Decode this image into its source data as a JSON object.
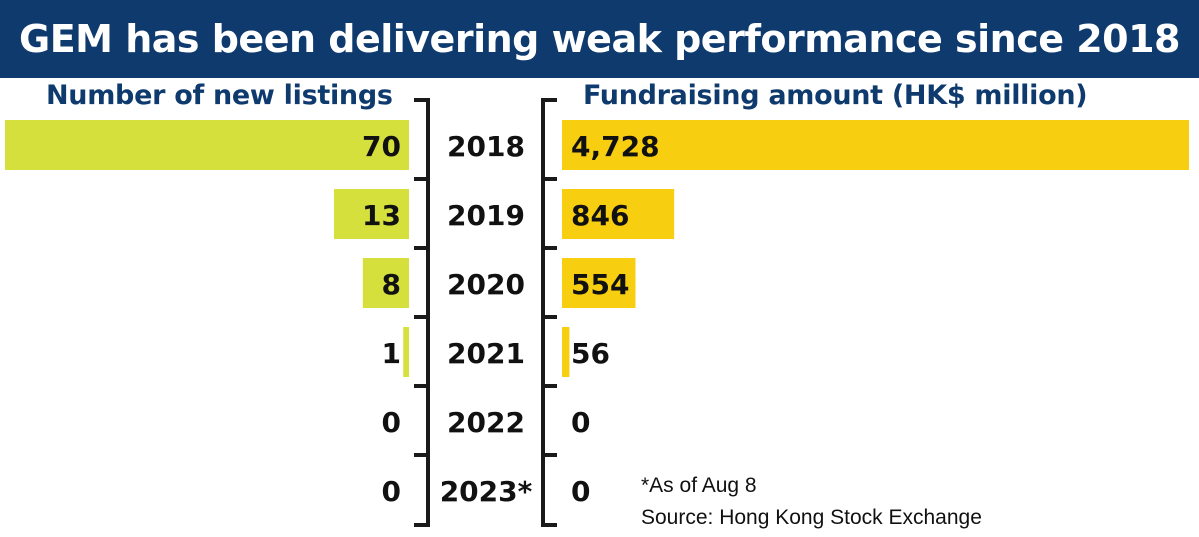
{
  "title": "GEM has been delivering weak performance since 2018",
  "colors": {
    "title_bg": "#0e3a6e",
    "header_text": "#0e3a6e",
    "listings_bar": "#d5e03c",
    "fundraising_bar": "#f7cf10",
    "bracket": "#1a1a1a"
  },
  "chart_data": {
    "type": "bar",
    "categories": [
      "2018",
      "2019",
      "2020",
      "2021",
      "2022",
      "2023*"
    ],
    "series": [
      {
        "name": "Number of new listings",
        "values": [
          70,
          13,
          8,
          1,
          0,
          0
        ],
        "labels": [
          "70",
          "13",
          "8",
          "1",
          "0",
          "0"
        ],
        "direction": "left"
      },
      {
        "name": "Fundraising amount (HK$ million)",
        "values": [
          4728,
          846,
          554,
          56,
          0,
          0
        ],
        "labels": [
          "4,728",
          "846",
          "554",
          "56",
          "0",
          "0"
        ],
        "direction": "right"
      }
    ]
  },
  "footnote": "*As of Aug 8",
  "source": "Source: Hong Kong Stock Exchange"
}
